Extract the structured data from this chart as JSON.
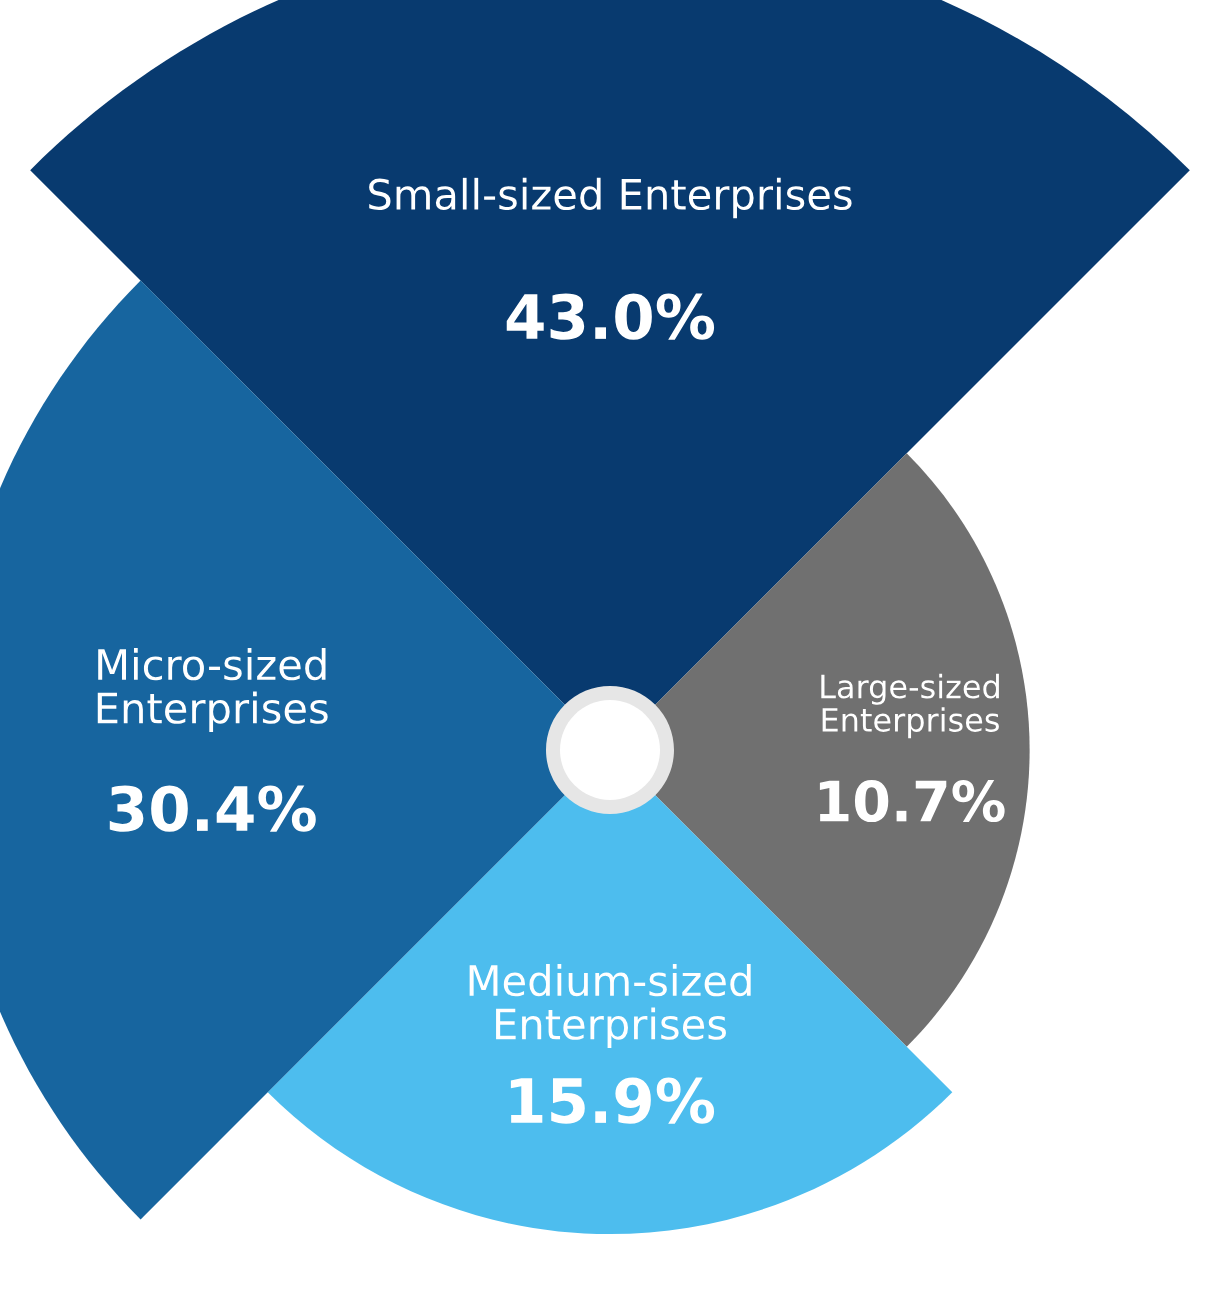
{
  "chart_data": {
    "type": "other",
    "categories": [
      "Small-sized Enterprises",
      "Large-sized Enterprises",
      "Medium-sized Enterprises",
      "Micro-sized Enterprises"
    ],
    "values": [
      43.0,
      10.7,
      15.9,
      30.4
    ],
    "colors": [
      "#083a6f",
      "#707070",
      "#4dbdee",
      "#17659f"
    ],
    "value_labels": [
      "43.0%",
      "10.7%",
      "15.9%",
      "30.4%"
    ]
  }
}
